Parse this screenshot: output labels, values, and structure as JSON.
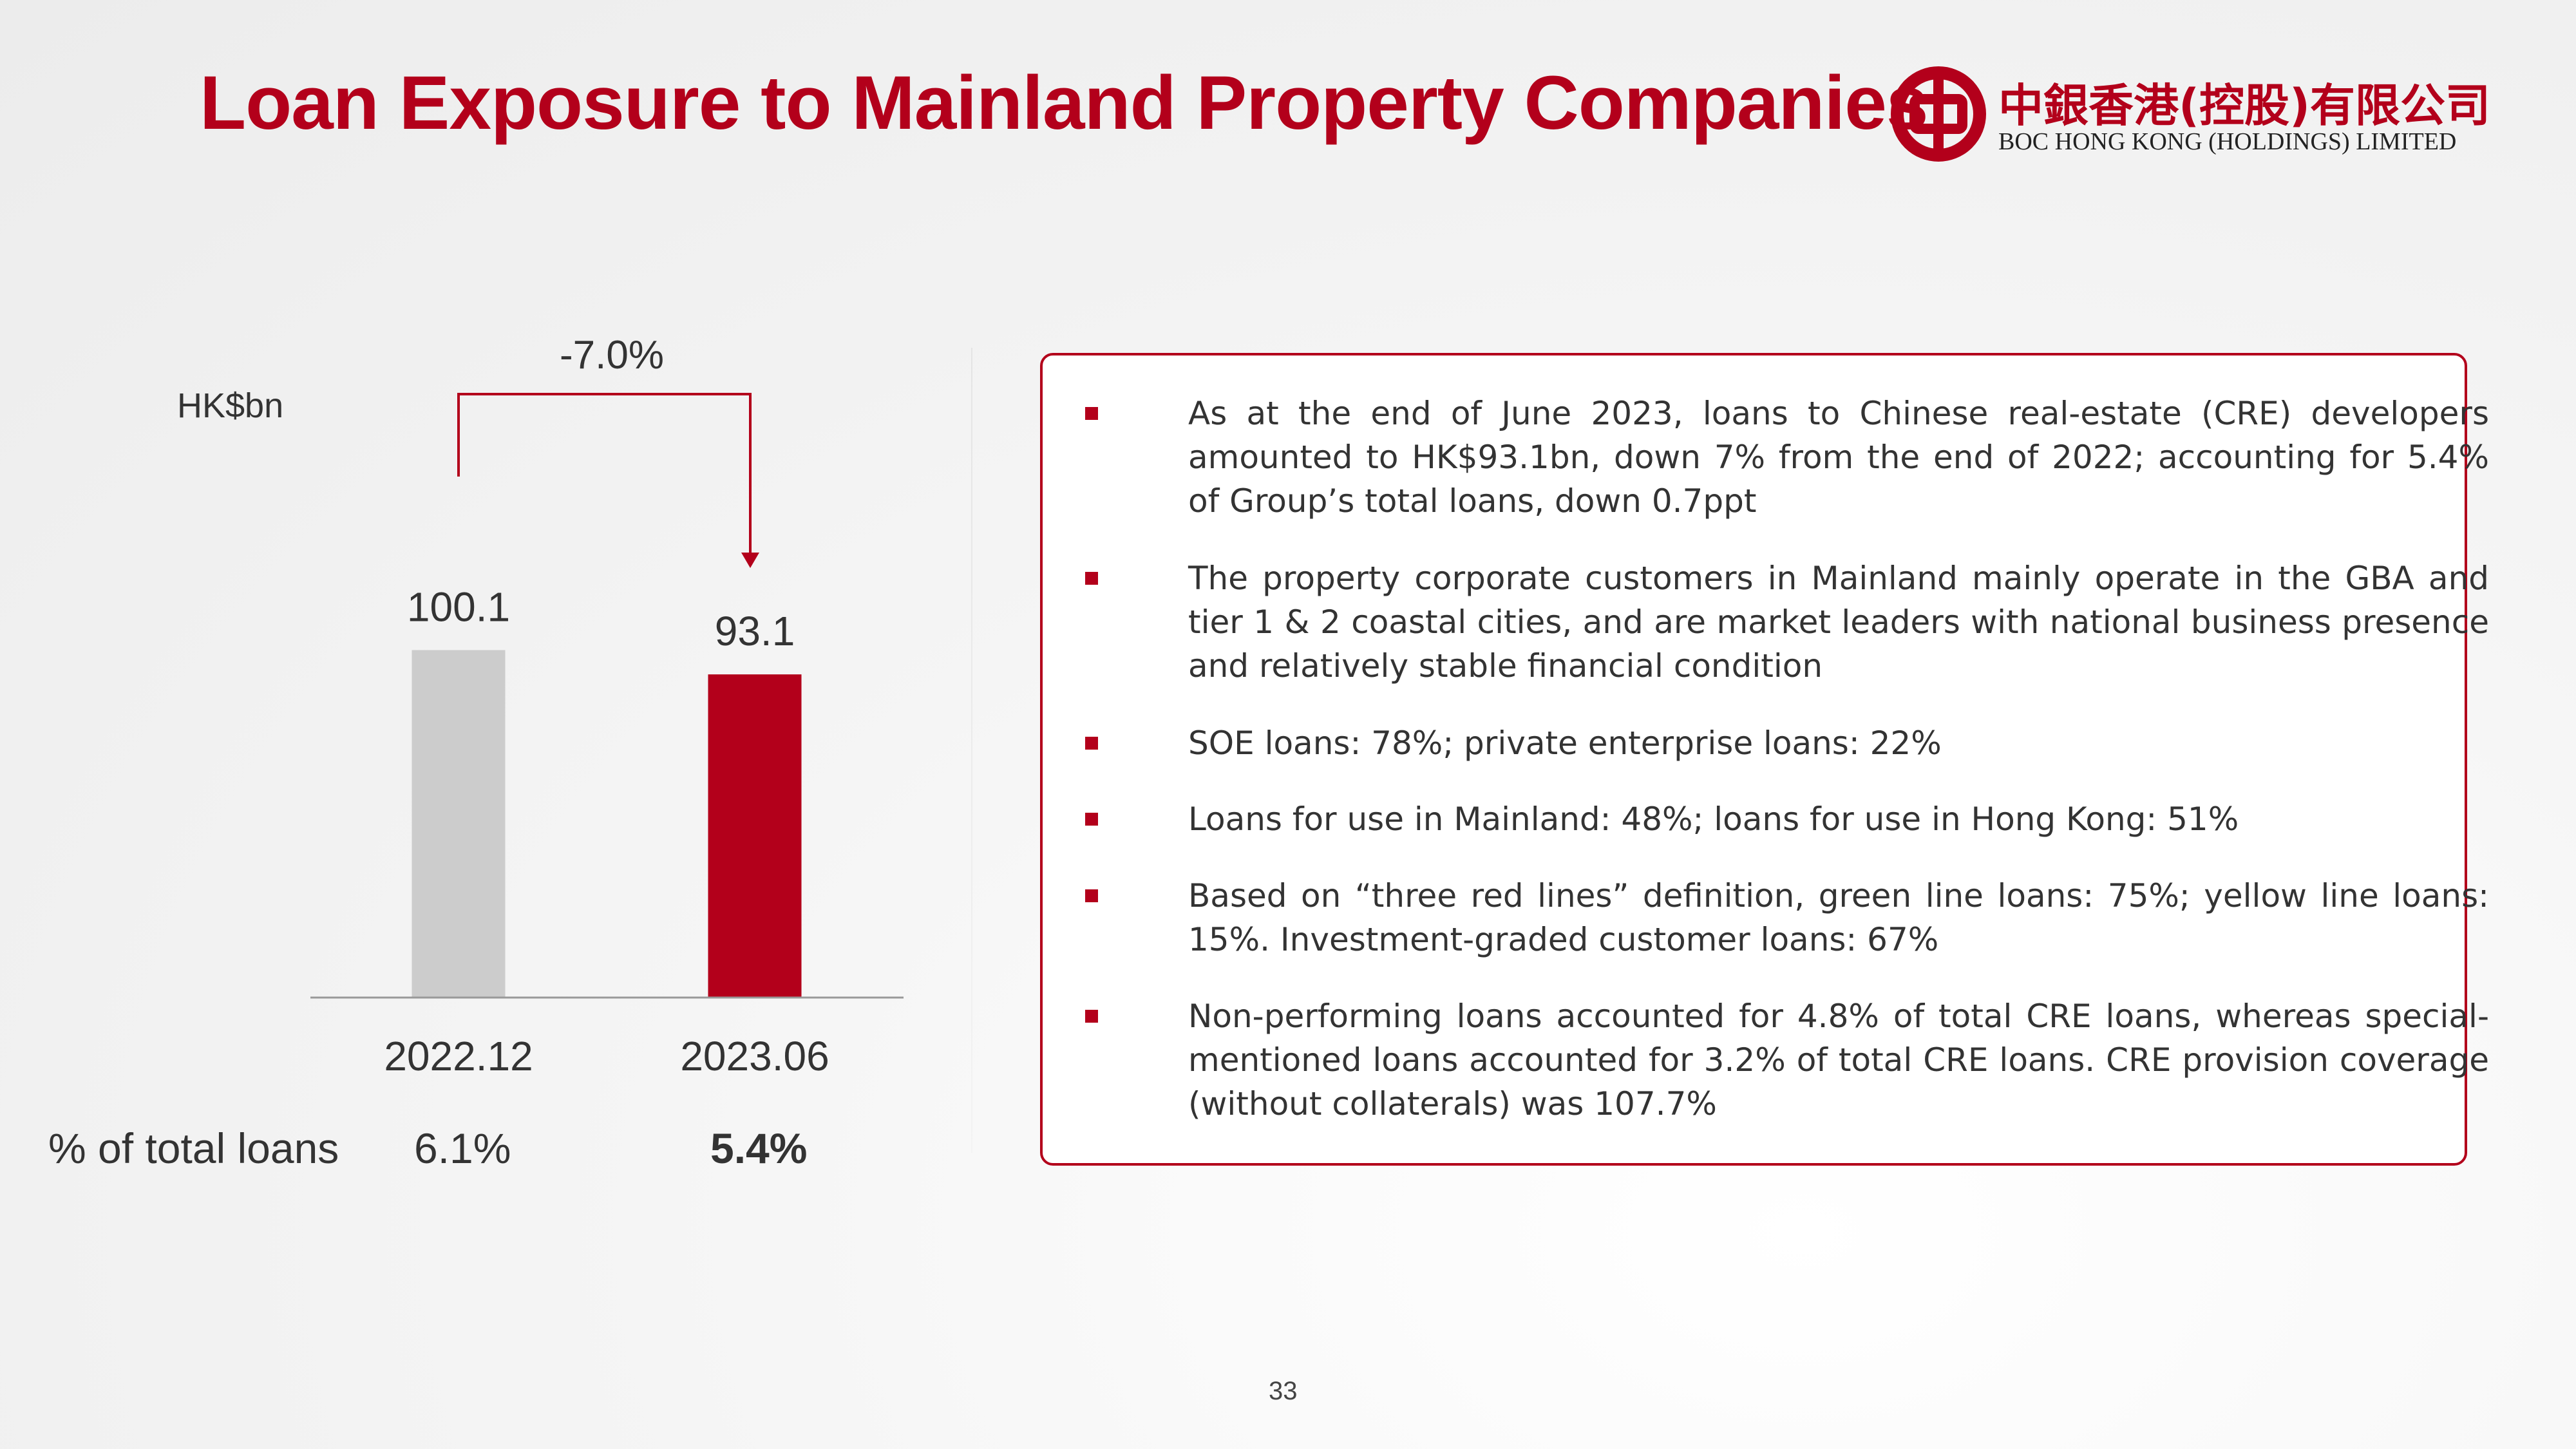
{
  "title": "Loan Exposure to Mainland Property Companies",
  "logo": {
    "name_cn": "中銀香港(控股)有限公司",
    "name_en": "BOC HONG KONG (HOLDINGS) LIMITED"
  },
  "colors": {
    "brand_red": "#b3001b",
    "bar_grey": "#cccccc",
    "bar_red": "#b3001b"
  },
  "chart_data": {
    "type": "bar",
    "unit_label": "HK$bn",
    "categories": [
      "2022.12",
      "2023.06"
    ],
    "values": [
      100.1,
      93.1
    ],
    "value_labels": [
      "100.1",
      "93.1"
    ],
    "bar_colors": [
      "#cccccc",
      "#b3001b"
    ],
    "change_annotation": "-7.0%",
    "ylim": [
      0,
      120
    ],
    "grid": false
  },
  "pct_row": {
    "label": "% of total loans",
    "values": [
      "6.1%",
      "5.4%"
    ]
  },
  "bullets": [
    "As at the end of June 2023, loans to Chinese real-estate (CRE) developers amounted to HK$93.1bn, down 7% from the end of 2022; accounting for 5.4% of Group’s total loans, down 0.7ppt",
    "The property corporate customers in Mainland mainly operate in the GBA and tier 1 & 2 coastal cities, and are market leaders with national business presence and relatively stable financial condition",
    "SOE loans: 78%; private enterprise loans: 22%",
    "Loans for use in Mainland: 48%; loans for use in Hong Kong: 51%",
    "Based on “three red lines” definition, green line loans: 75%; yellow line loans: 15%. Investment-graded customer loans: 67%",
    "Non-performing loans accounted for 4.8% of total CRE loans, whereas special-mentioned loans accounted for 3.2% of total CRE loans. CRE provision coverage (without collaterals) was 107.7%"
  ],
  "page_number": "33"
}
